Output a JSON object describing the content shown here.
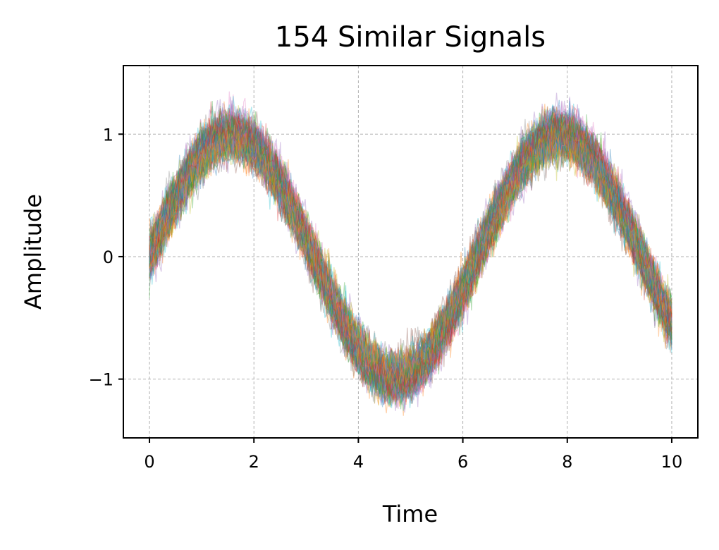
{
  "chart_data": {
    "type": "line",
    "title": "154 Similar Signals",
    "xlabel": "Time",
    "ylabel": "Amplitude",
    "xlim": [
      -0.5,
      10.5
    ],
    "ylim": [
      -1.48,
      1.56
    ],
    "x_ticks": [
      0,
      2,
      4,
      6,
      8,
      10
    ],
    "x_tick_labels": [
      "0",
      "2",
      "4",
      "6",
      "8",
      "10"
    ],
    "y_ticks": [
      -1,
      0,
      1
    ],
    "y_tick_labels": [
      "−1",
      "0",
      "1"
    ],
    "grid": true,
    "legend": "none",
    "series_count": 154,
    "signal_model": {
      "function": "sin",
      "x_start": 0,
      "x_end": 10,
      "points_per_series": 400,
      "amplitude_mean": 1.0,
      "amplitude_spread": 0.12,
      "phase_spread": 0.06,
      "noise_sd": 0.07
    },
    "colors": [
      "#1f77b4",
      "#ff7f0e",
      "#2ca02c",
      "#d62728",
      "#9467bd",
      "#8c564b",
      "#e377c2",
      "#7f7f7f",
      "#bcbd22",
      "#17becf"
    ]
  }
}
